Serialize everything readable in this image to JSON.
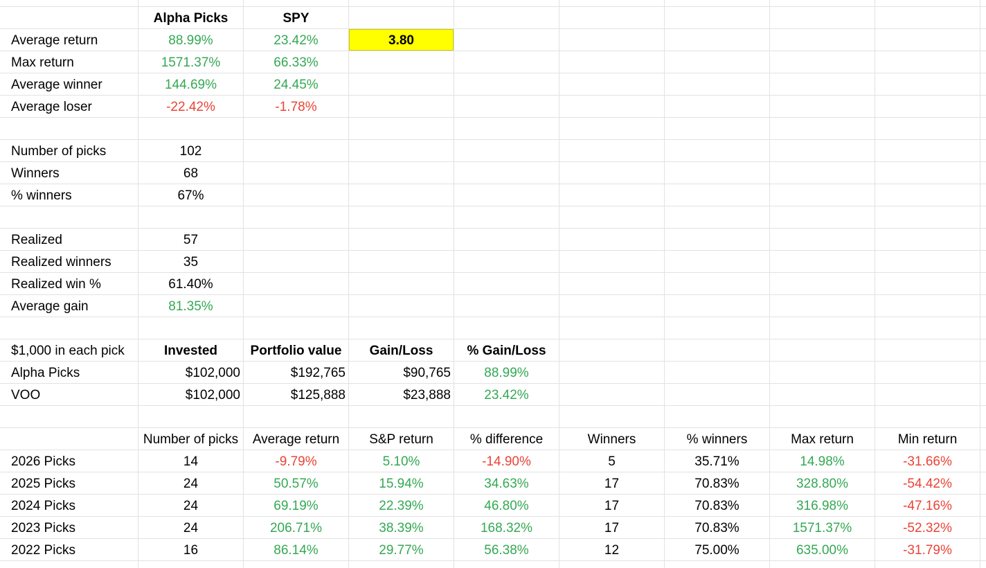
{
  "summary": {
    "header_alpha": "Alpha Picks",
    "header_spy": "SPY",
    "rows": [
      {
        "label": "Average return",
        "alpha": "88.99%",
        "spy": "23.42%"
      },
      {
        "label": "Max return",
        "alpha": "1571.37%",
        "spy": "66.33%"
      },
      {
        "label": "Average winner",
        "alpha": "144.69%",
        "spy": "24.45%"
      },
      {
        "label": "Average loser",
        "alpha": "-22.42%",
        "spy": "-1.78%"
      }
    ],
    "ratio": "3.80"
  },
  "picks_stats": [
    {
      "label": "Number of picks",
      "value": "102"
    },
    {
      "label": "Winners",
      "value": "68"
    },
    {
      "label": "% winners",
      "value": "67%"
    }
  ],
  "realized_stats": [
    {
      "label": "Realized",
      "value": "57"
    },
    {
      "label": "Realized winners",
      "value": "35"
    },
    {
      "label": "Realized win %",
      "value": "61.40%"
    },
    {
      "label": "Average gain",
      "value": "81.35%"
    }
  ],
  "investment": {
    "headers": [
      "$1,000 in each pick",
      "Invested",
      "Portfolio value",
      "Gain/Loss",
      "% Gain/Loss"
    ],
    "rows": [
      {
        "label": "Alpha Picks",
        "invested": "$102,000",
        "portfolio": "$192,765",
        "gain": "$90,765",
        "pct": "88.99%"
      },
      {
        "label": "VOO",
        "invested": "$102,000",
        "portfolio": "$125,888",
        "gain": "$23,888",
        "pct": "23.42%"
      }
    ]
  },
  "yearly": {
    "headers": [
      "Number of picks",
      "Average return",
      "S&P return",
      "% difference",
      "Winners",
      "% winners",
      "Max return",
      "Min return"
    ],
    "rows": [
      {
        "label": "2026 Picks",
        "picks": "14",
        "avg": "-9.79%",
        "sp": "5.10%",
        "diff": "-14.90%",
        "winners": "5",
        "pct_win": "35.71%",
        "max": "14.98%",
        "min": "-31.66%"
      },
      {
        "label": "2025 Picks",
        "picks": "24",
        "avg": "50.57%",
        "sp": "15.94%",
        "diff": "34.63%",
        "winners": "17",
        "pct_win": "70.83%",
        "max": "328.80%",
        "min": "-54.42%"
      },
      {
        "label": "2024 Picks",
        "picks": "24",
        "avg": "69.19%",
        "sp": "22.39%",
        "diff": "46.80%",
        "winners": "17",
        "pct_win": "70.83%",
        "max": "316.98%",
        "min": "-47.16%"
      },
      {
        "label": "2023 Picks",
        "picks": "24",
        "avg": "206.71%",
        "sp": "38.39%",
        "diff": "168.32%",
        "winners": "17",
        "pct_win": "70.83%",
        "max": "1571.37%",
        "min": "-52.32%"
      },
      {
        "label": "2022 Picks",
        "picks": "16",
        "avg": "86.14%",
        "sp": "29.77%",
        "diff": "56.38%",
        "winners": "12",
        "pct_win": "75.00%",
        "max": "635.00%",
        "min": "-31.79%"
      }
    ]
  },
  "colors": {
    "positive": "#34a853",
    "negative": "#ea4335",
    "highlight": "#ffff00",
    "gridline": "#e2e2e2"
  }
}
